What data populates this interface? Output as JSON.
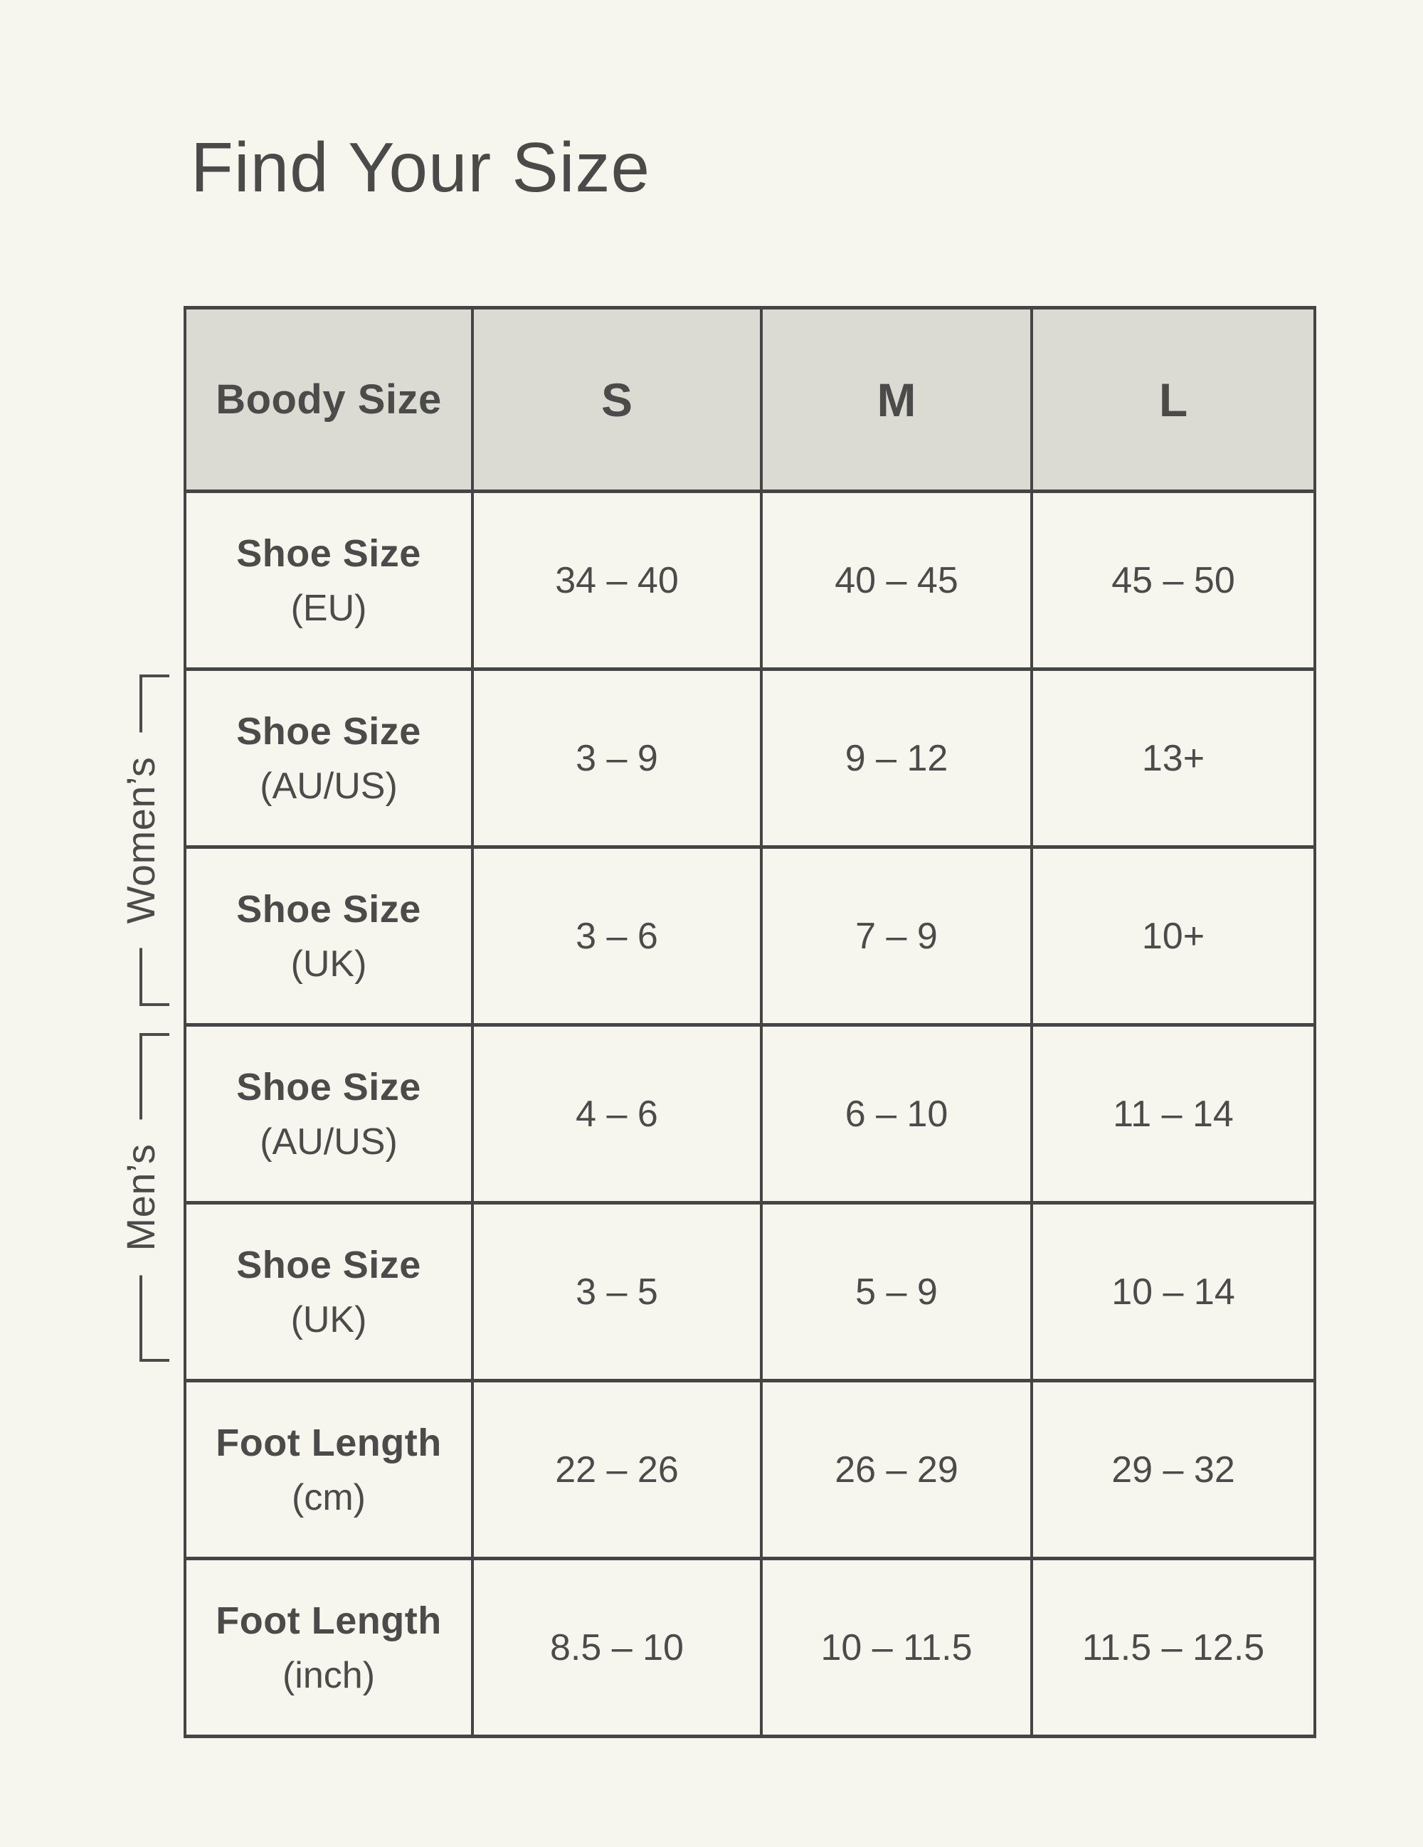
{
  "page": {
    "title": "Find Your Size"
  },
  "colors": {
    "background": "#f6f6ef",
    "header_background": "#dbdbd3",
    "border": "#454543",
    "text": "#4b4b49"
  },
  "table": {
    "header": {
      "label": "Boody Size",
      "columns": [
        "S",
        "M",
        "L"
      ]
    },
    "rows": [
      {
        "label": "Shoe Size",
        "unit": "(EU)",
        "values": [
          "34 – 40",
          "40 – 45",
          "45 – 50"
        ]
      },
      {
        "label": "Shoe Size",
        "unit": "(AU/US)",
        "values": [
          "3 – 9",
          "9 – 12",
          "13+"
        ]
      },
      {
        "label": "Shoe Size",
        "unit": "(UK)",
        "values": [
          "3 – 6",
          "7 – 9",
          "10+"
        ]
      },
      {
        "label": "Shoe Size",
        "unit": "(AU/US)",
        "values": [
          "4 – 6",
          "6 – 10",
          "11 – 14"
        ]
      },
      {
        "label": "Shoe Size",
        "unit": "(UK)",
        "values": [
          "3 – 5",
          "5 – 9",
          "10 – 14"
        ]
      },
      {
        "label": "Foot Length",
        "unit": "(cm)",
        "values": [
          "22 – 26",
          "26 – 29",
          "29 – 32"
        ]
      },
      {
        "label": "Foot Length",
        "unit": "(inch)",
        "values": [
          "8.5 – 10",
          "10 – 11.5",
          "11.5 – 12.5"
        ]
      }
    ],
    "groups": [
      {
        "label": "Women’s"
      },
      {
        "label": "Men’s"
      }
    ]
  }
}
